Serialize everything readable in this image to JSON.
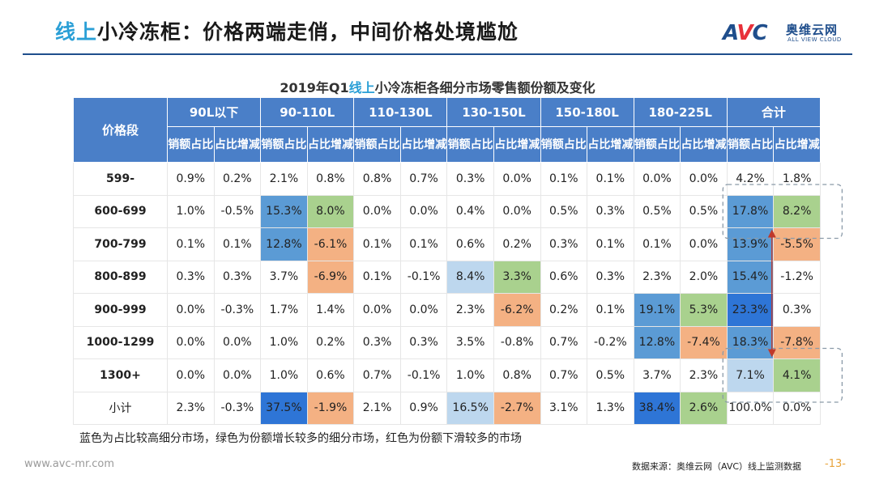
{
  "page": {
    "title_highlight": "线上",
    "title_rest": "小冷冻柜：价格两端走俏，中间价格处境尴尬"
  },
  "logo": {
    "mark_a": "A",
    "mark_v": "V",
    "mark_c": "C",
    "name_cn": "奥维云网",
    "name_en": "ALL VIEW CLOUD"
  },
  "table": {
    "title_pre": "2019年Q1",
    "title_highlight": "线上",
    "title_post": "小冷冻柜各细分市场零售额份额及变化",
    "corner_label": "价格段",
    "groups": [
      "90L以下",
      "90-110L",
      "110-130L",
      "130-150L",
      "150-180L",
      "180-225L",
      "合计"
    ],
    "sub_share": "销额占比",
    "sub_change": "占比增减",
    "rows": [
      {
        "segment": "599-",
        "values": [
          "0.9%",
          "0.2%",
          "2.1%",
          "0.8%",
          "0.8%",
          "0.7%",
          "0.3%",
          "0.0%",
          "0.1%",
          "0.1%",
          "0.0%",
          "0.0%",
          "4.2%",
          "1.8%"
        ]
      },
      {
        "segment": "600-699",
        "values": [
          "1.0%",
          "-0.5%",
          "15.3%",
          "8.0%",
          "0.0%",
          "0.0%",
          "0.4%",
          "0.0%",
          "0.5%",
          "0.3%",
          "0.5%",
          "0.5%",
          "17.8%",
          "8.2%"
        ]
      },
      {
        "segment": "700-799",
        "values": [
          "0.1%",
          "0.1%",
          "12.8%",
          "-6.1%",
          "0.1%",
          "0.1%",
          "0.6%",
          "0.2%",
          "0.3%",
          "0.1%",
          "0.1%",
          "0.0%",
          "13.9%",
          "-5.5%"
        ]
      },
      {
        "segment": "800-899",
        "values": [
          "0.3%",
          "0.3%",
          "3.7%",
          "-6.9%",
          "0.1%",
          "-0.1%",
          "8.4%",
          "3.3%",
          "0.6%",
          "0.3%",
          "2.3%",
          "2.0%",
          "15.4%",
          "-1.2%"
        ]
      },
      {
        "segment": "900-999",
        "values": [
          "0.0%",
          "-0.3%",
          "1.7%",
          "1.4%",
          "0.0%",
          "0.0%",
          "2.3%",
          "-6.2%",
          "0.2%",
          "0.1%",
          "19.1%",
          "5.3%",
          "23.3%",
          "0.3%"
        ]
      },
      {
        "segment": "1000-1299",
        "values": [
          "0.0%",
          "0.0%",
          "1.0%",
          "0.2%",
          "0.3%",
          "0.3%",
          "3.5%",
          "-0.8%",
          "0.7%",
          "-0.2%",
          "12.8%",
          "-7.4%",
          "18.3%",
          "-7.8%"
        ]
      },
      {
        "segment": "1300+",
        "values": [
          "0.0%",
          "0.0%",
          "1.0%",
          "0.6%",
          "0.7%",
          "-0.1%",
          "1.0%",
          "0.8%",
          "0.7%",
          "0.5%",
          "3.7%",
          "2.3%",
          "7.1%",
          "4.1%"
        ]
      },
      {
        "segment": "小计",
        "values": [
          "2.3%",
          "-0.3%",
          "37.5%",
          "-1.9%",
          "2.1%",
          "0.9%",
          "16.5%",
          "-2.7%",
          "3.1%",
          "1.3%",
          "38.4%",
          "2.6%",
          "100.0%",
          "0.0%"
        ]
      }
    ],
    "highlights": [
      {
        "row": 1,
        "col": 2,
        "color": "#5b9bd5"
      },
      {
        "row": 1,
        "col": 3,
        "color": "#a9d18e"
      },
      {
        "row": 2,
        "col": 2,
        "color": "#5b9bd5"
      },
      {
        "row": 2,
        "col": 3,
        "color": "#f4b183"
      },
      {
        "row": 3,
        "col": 3,
        "color": "#f4b183"
      },
      {
        "row": 3,
        "col": 6,
        "color": "#bdd7ee"
      },
      {
        "row": 3,
        "col": 7,
        "color": "#a9d18e"
      },
      {
        "row": 4,
        "col": 7,
        "color": "#f4b183"
      },
      {
        "row": 4,
        "col": 10,
        "color": "#5b9bd5"
      },
      {
        "row": 4,
        "col": 11,
        "color": "#a9d18e"
      },
      {
        "row": 5,
        "col": 10,
        "color": "#5b9bd5"
      },
      {
        "row": 5,
        "col": 11,
        "color": "#f4b183"
      },
      {
        "row": 7,
        "col": 2,
        "color": "#2e75d6"
      },
      {
        "row": 7,
        "col": 3,
        "color": "#f4b183"
      },
      {
        "row": 7,
        "col": 6,
        "color": "#bdd7ee"
      },
      {
        "row": 7,
        "col": 7,
        "color": "#f4b183"
      },
      {
        "row": 7,
        "col": 10,
        "color": "#2e75d6"
      },
      {
        "row": 7,
        "col": 11,
        "color": "#a9d18e"
      },
      {
        "row": 1,
        "col": 12,
        "color": "#5b9bd5"
      },
      {
        "row": 1,
        "col": 13,
        "color": "#a9d18e"
      },
      {
        "row": 2,
        "col": 12,
        "color": "#5b9bd5"
      },
      {
        "row": 2,
        "col": 13,
        "color": "#f4b183"
      },
      {
        "row": 3,
        "col": 12,
        "color": "#5b9bd5"
      },
      {
        "row": 4,
        "col": 12,
        "color": "#2e75d6"
      },
      {
        "row": 5,
        "col": 12,
        "color": "#5b9bd5"
      },
      {
        "row": 5,
        "col": 13,
        "color": "#f4b183"
      },
      {
        "row": 6,
        "col": 12,
        "color": "#bdd7ee"
      },
      {
        "row": 6,
        "col": 13,
        "color": "#a9d18e"
      },
      {
        "row": 7,
        "col": 12,
        "color": "#ffffff"
      }
    ]
  },
  "colors": {
    "header_bg": "#4a7fc8",
    "accent": "#2a9fd6",
    "brand": "#1f4e8c",
    "arrow": "#c0392b",
    "dash": "#8a9aa8"
  },
  "note": "蓝色为占比较高细分市场，绿色为份额增长较多的细分市场，红色为份额下滑较多的市场",
  "footer": {
    "url": "www.avc-mr.com",
    "source": "数据来源：奥维云网（AVC）线上监测数据",
    "page": "-13-"
  }
}
